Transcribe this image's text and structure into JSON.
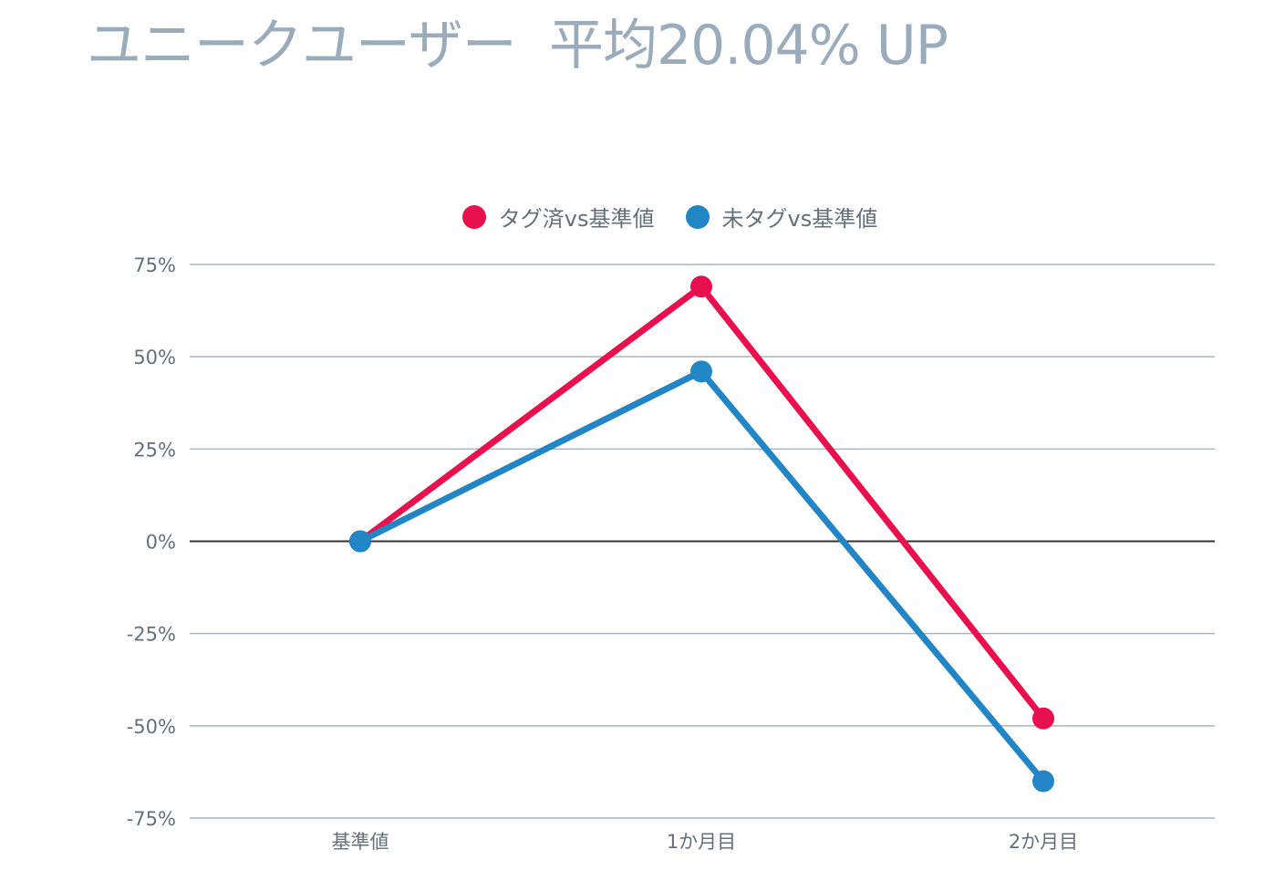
{
  "title": "ユニークユーザー  平均20.04% UP",
  "chart_data": {
    "type": "line",
    "title": "",
    "xlabel": "",
    "ylabel": "",
    "categories": [
      "基準値",
      "1か月目",
      "2か月目"
    ],
    "y_ticks": [
      "75%",
      "50%",
      "25%",
      "0%",
      "-25%",
      "-50%",
      "-75%"
    ],
    "ylim": [
      -75,
      75
    ],
    "legend_position": "top",
    "grid": true,
    "series": [
      {
        "name": "タグ済vs基準値",
        "color": "#e8104e",
        "values": [
          0,
          69,
          -48
        ]
      },
      {
        "name": "未タグvs基準値",
        "color": "#2185c6",
        "values": [
          0,
          46,
          -65
        ]
      }
    ]
  }
}
